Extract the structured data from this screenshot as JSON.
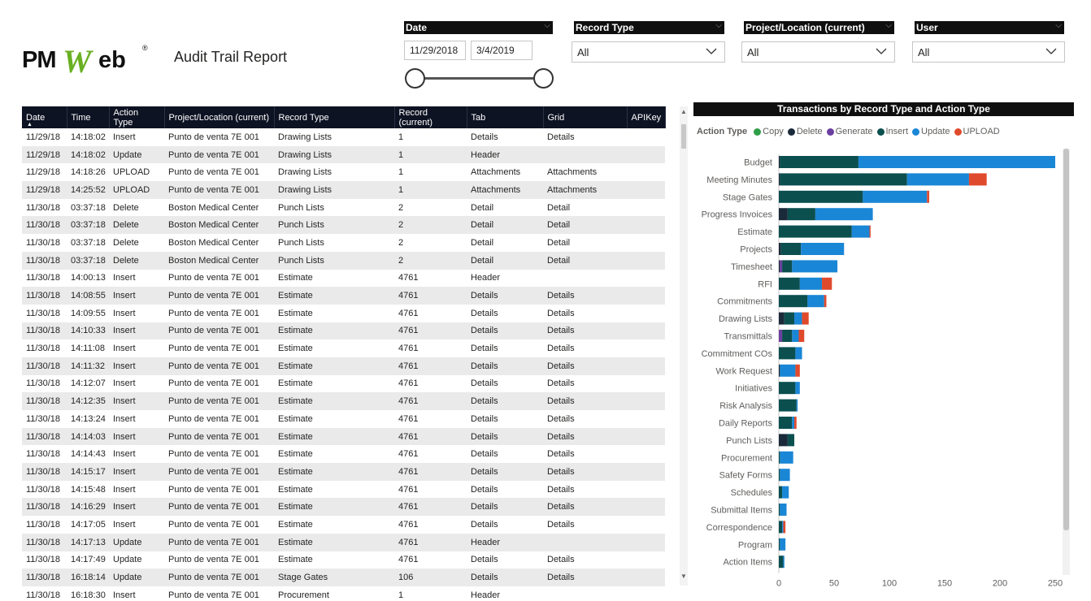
{
  "app": {
    "logo_text": "PMWeb",
    "title": "Audit Trail Report"
  },
  "slicers": {
    "date": {
      "label": "Date",
      "start": "11/29/2018",
      "end": "3/4/2019"
    },
    "record_type": {
      "label": "Record Type",
      "value": "All"
    },
    "project_location": {
      "label": "Project/Location (current)",
      "value": "All"
    },
    "user": {
      "label": "User",
      "value": "All"
    }
  },
  "table": {
    "columns": [
      "Date",
      "Time",
      "Action Type",
      "Project/Location (current)",
      "Record Type",
      "Record (current)",
      "Tab",
      "Grid",
      "APIKey"
    ],
    "rows": [
      [
        "11/29/18",
        "14:18:02",
        "Insert",
        "Punto de venta 7E 001",
        "Drawing Lists",
        "1",
        "Details",
        "Details",
        ""
      ],
      [
        "11/29/18",
        "14:18:02",
        "Update",
        "Punto de venta 7E 001",
        "Drawing Lists",
        "1",
        "Header",
        "",
        ""
      ],
      [
        "11/29/18",
        "14:18:26",
        "UPLOAD",
        "Punto de venta 7E 001",
        "Drawing Lists",
        "1",
        "Attachments",
        "Attachments",
        ""
      ],
      [
        "11/29/18",
        "14:25:52",
        "UPLOAD",
        "Punto de venta 7E 001",
        "Drawing Lists",
        "1",
        "Attachments",
        "Attachments",
        ""
      ],
      [
        "11/30/18",
        "03:37:18",
        "Delete",
        "Boston Medical Center",
        "Punch Lists",
        "2",
        "Detail",
        "Detail",
        ""
      ],
      [
        "11/30/18",
        "03:37:18",
        "Delete",
        "Boston Medical Center",
        "Punch Lists",
        "2",
        "Detail",
        "Detail",
        ""
      ],
      [
        "11/30/18",
        "03:37:18",
        "Delete",
        "Boston Medical Center",
        "Punch Lists",
        "2",
        "Detail",
        "Detail",
        ""
      ],
      [
        "11/30/18",
        "03:37:18",
        "Delete",
        "Boston Medical Center",
        "Punch Lists",
        "2",
        "Detail",
        "Detail",
        ""
      ],
      [
        "11/30/18",
        "14:00:13",
        "Insert",
        "Punto de venta 7E 001",
        "Estimate",
        "4761",
        "Header",
        "",
        ""
      ],
      [
        "11/30/18",
        "14:08:55",
        "Insert",
        "Punto de venta 7E 001",
        "Estimate",
        "4761",
        "Details",
        "Details",
        ""
      ],
      [
        "11/30/18",
        "14:09:55",
        "Insert",
        "Punto de venta 7E 001",
        "Estimate",
        "4761",
        "Details",
        "Details",
        ""
      ],
      [
        "11/30/18",
        "14:10:33",
        "Insert",
        "Punto de venta 7E 001",
        "Estimate",
        "4761",
        "Details",
        "Details",
        ""
      ],
      [
        "11/30/18",
        "14:11:08",
        "Insert",
        "Punto de venta 7E 001",
        "Estimate",
        "4761",
        "Details",
        "Details",
        ""
      ],
      [
        "11/30/18",
        "14:11:32",
        "Insert",
        "Punto de venta 7E 001",
        "Estimate",
        "4761",
        "Details",
        "Details",
        ""
      ],
      [
        "11/30/18",
        "14:12:07",
        "Insert",
        "Punto de venta 7E 001",
        "Estimate",
        "4761",
        "Details",
        "Details",
        ""
      ],
      [
        "11/30/18",
        "14:12:35",
        "Insert",
        "Punto de venta 7E 001",
        "Estimate",
        "4761",
        "Details",
        "Details",
        ""
      ],
      [
        "11/30/18",
        "14:13:24",
        "Insert",
        "Punto de venta 7E 001",
        "Estimate",
        "4761",
        "Details",
        "Details",
        ""
      ],
      [
        "11/30/18",
        "14:14:03",
        "Insert",
        "Punto de venta 7E 001",
        "Estimate",
        "4761",
        "Details",
        "Details",
        ""
      ],
      [
        "11/30/18",
        "14:14:43",
        "Insert",
        "Punto de venta 7E 001",
        "Estimate",
        "4761",
        "Details",
        "Details",
        ""
      ],
      [
        "11/30/18",
        "14:15:17",
        "Insert",
        "Punto de venta 7E 001",
        "Estimate",
        "4761",
        "Details",
        "Details",
        ""
      ],
      [
        "11/30/18",
        "14:15:48",
        "Insert",
        "Punto de venta 7E 001",
        "Estimate",
        "4761",
        "Details",
        "Details",
        ""
      ],
      [
        "11/30/18",
        "14:16:29",
        "Insert",
        "Punto de venta 7E 001",
        "Estimate",
        "4761",
        "Details",
        "Details",
        ""
      ],
      [
        "11/30/18",
        "14:17:05",
        "Insert",
        "Punto de venta 7E 001",
        "Estimate",
        "4761",
        "Details",
        "Details",
        ""
      ],
      [
        "11/30/18",
        "14:17:13",
        "Update",
        "Punto de venta 7E 001",
        "Estimate",
        "4761",
        "Header",
        "",
        ""
      ],
      [
        "11/30/18",
        "14:17:49",
        "Update",
        "Punto de venta 7E 001",
        "Estimate",
        "4761",
        "Details",
        "Details",
        ""
      ],
      [
        "11/30/18",
        "16:18:14",
        "Update",
        "Punto de venta 7E 001",
        "Stage Gates",
        "106",
        "Details",
        "Details",
        ""
      ],
      [
        "11/30/18",
        "16:18:30",
        "Insert",
        "Punto de venta 7E 001",
        "Procurement",
        "1",
        "Header",
        "",
        ""
      ]
    ]
  },
  "chart_data": {
    "type": "bar",
    "orientation": "horizontal",
    "stacked": true,
    "title": "Transactions by Record Type and Action Type",
    "legend_title": "Action Type",
    "legend_position": "top-left",
    "categories": [
      "Budget",
      "Meeting Minutes",
      "Stage Gates",
      "Progress Invoices",
      "Estimate",
      "Projects",
      "Timesheet",
      "RFI",
      "Commitments",
      "Drawing Lists",
      "Transmittals",
      "Commitment COs",
      "Work Request",
      "Initiatives",
      "Risk Analysis",
      "Daily Reports",
      "Punch Lists",
      "Procurement",
      "Safety Forms",
      "Schedules",
      "Submittal Items",
      "Correspondence",
      "Program",
      "Action Items"
    ],
    "series": [
      {
        "name": "Copy",
        "color": "#2e9e48",
        "values": [
          0,
          0,
          0,
          0,
          0,
          0,
          0,
          0,
          0,
          0,
          0,
          0,
          0,
          0,
          0,
          0,
          0,
          0,
          0,
          0,
          0,
          0,
          0,
          0
        ]
      },
      {
        "name": "Delete",
        "color": "#1b2a3a",
        "values": [
          1,
          1,
          0,
          8,
          0,
          2,
          1,
          0,
          0,
          5,
          0,
          0,
          1,
          0,
          0,
          0,
          8,
          0,
          0,
          0,
          0,
          0,
          0,
          0
        ]
      },
      {
        "name": "Generate",
        "color": "#6b3fa0",
        "values": [
          0,
          0,
          0,
          0,
          0,
          0,
          2,
          0,
          0,
          0,
          3,
          0,
          0,
          0,
          0,
          0,
          0,
          0,
          0,
          0,
          0,
          0,
          0,
          0
        ]
      },
      {
        "name": "Insert",
        "color": "#0b4f4f",
        "values": [
          71,
          115,
          76,
          25,
          66,
          18,
          9,
          19,
          26,
          9,
          9,
          15,
          0,
          15,
          16,
          12,
          6,
          1,
          1,
          3,
          1,
          3,
          1,
          4
        ]
      },
      {
        "name": "Update",
        "color": "#1a86d6",
        "values": [
          178,
          56,
          58,
          52,
          16,
          39,
          41,
          20,
          15,
          7,
          6,
          6,
          14,
          4,
          1,
          2,
          0,
          12,
          9,
          6,
          6,
          1,
          5,
          1
        ]
      },
      {
        "name": "UPLOAD",
        "color": "#e04a2c",
        "values": [
          0,
          16,
          2,
          0,
          1,
          0,
          0,
          9,
          2,
          6,
          5,
          0,
          4,
          0,
          0,
          2,
          0,
          0,
          0,
          0,
          0,
          2,
          0,
          0
        ]
      }
    ],
    "x_ticks": [
      "0",
      "50",
      "100",
      "150",
      "200",
      "250"
    ],
    "xlim": [
      0,
      250
    ]
  }
}
